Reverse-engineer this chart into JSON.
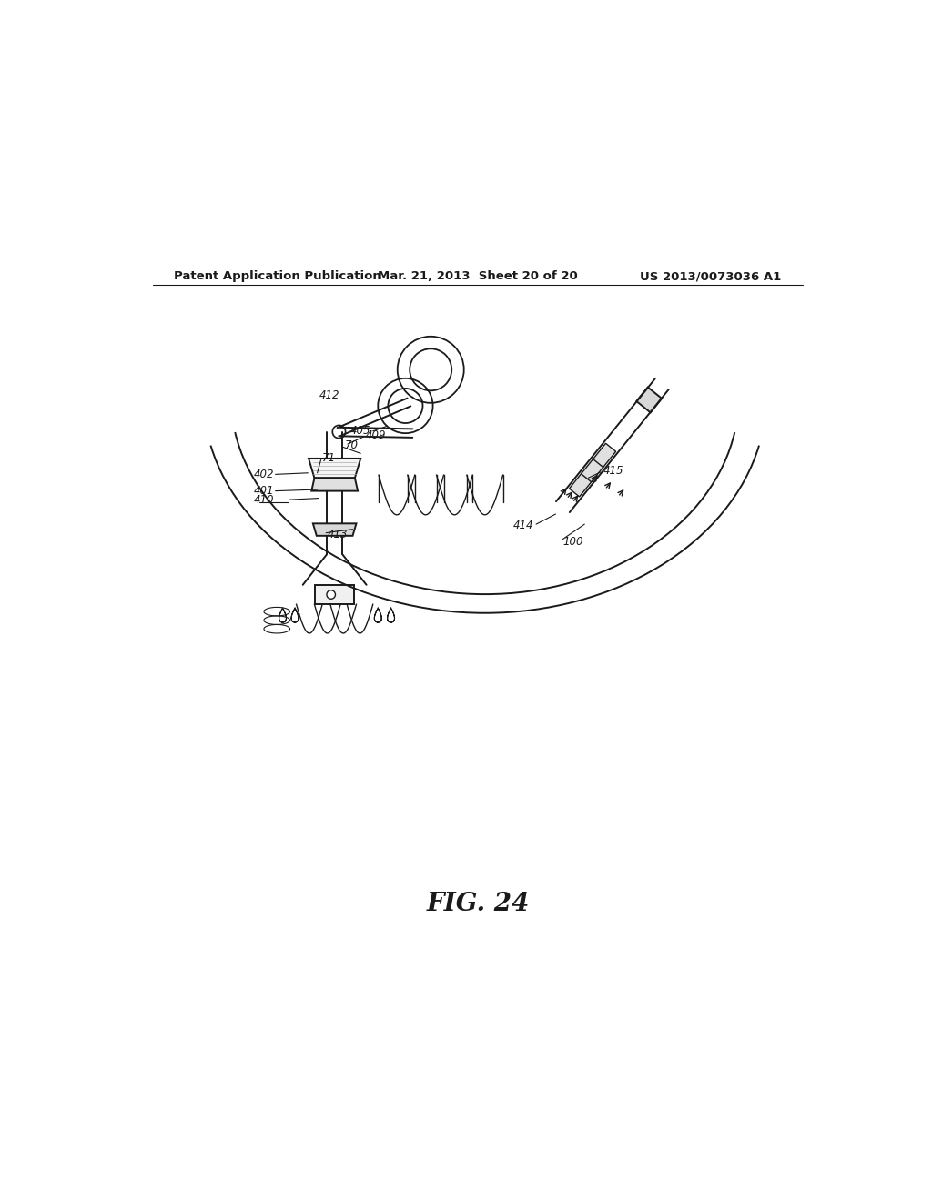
{
  "bg_color": "#ffffff",
  "line_color": "#1a1a1a",
  "header_left": "Patent Application Publication",
  "header_mid": "Mar. 21, 2013  Sheet 20 of 20",
  "header_right": "US 2013/0073036 A1",
  "figure_label": "FIG. 24"
}
